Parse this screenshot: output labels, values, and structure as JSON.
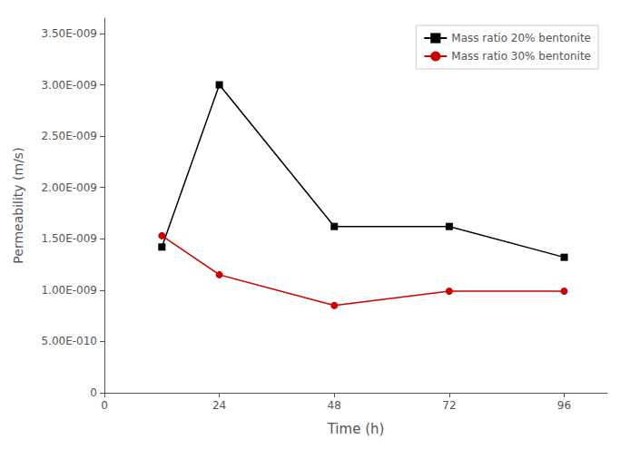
{
  "chart_data": {
    "type": "line",
    "xlabel": "Time (h)",
    "ylabel": "Permeability (m/s)",
    "x": [
      12,
      24,
      48,
      72,
      96
    ],
    "series": [
      {
        "name": "Mass ratio 20% bentonite",
        "color": "#000000",
        "marker": "square",
        "values": [
          1.42e-09,
          3e-09,
          1.62e-09,
          1.62e-09,
          1.32e-09
        ]
      },
      {
        "name": "Mass ratio 30% bentonite",
        "color": "#cc0000",
        "marker": "circle",
        "values": [
          1.53e-09,
          1.15e-09,
          8.5e-10,
          9.9e-10,
          9.9e-10
        ]
      }
    ],
    "xlim": [
      0,
      105
    ],
    "xticks": [
      0,
      24,
      48,
      72,
      96
    ],
    "ylim": [
      0,
      3.65e-09
    ],
    "yticks": [
      0,
      {
        "value": 5e-10,
        "label": "5.00E-010"
      },
      {
        "value": 1e-09,
        "label": "1.00E-009"
      },
      {
        "value": 1.5e-09,
        "label": "1.50E-009"
      },
      {
        "value": 2e-09,
        "label": "2.00E-009"
      },
      {
        "value": 2.5e-09,
        "label": "2.50E-009"
      },
      {
        "value": 3e-09,
        "label": "3.00E-009"
      },
      {
        "value": 3.5e-09,
        "label": "3.50E-009"
      }
    ],
    "grid": false,
    "legend": "upper right"
  }
}
